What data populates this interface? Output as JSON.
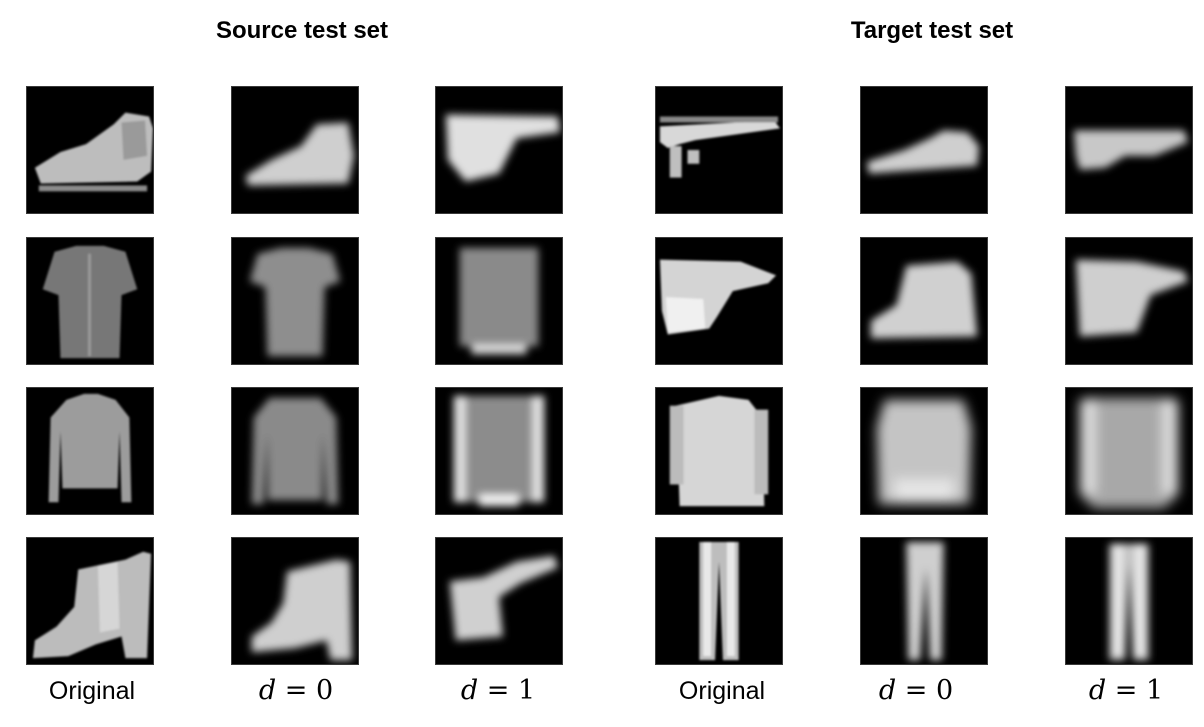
{
  "panels": [
    {
      "title": "Source test set",
      "columns": [
        {
          "label_text": "Original"
        },
        {
          "label_var": "d",
          "label_rest": " = 0"
        },
        {
          "label_var": "d",
          "label_rest": " = 1"
        }
      ]
    },
    {
      "title": "Target test set",
      "columns": [
        {
          "label_text": "Original"
        },
        {
          "label_var": "d",
          "label_rest": " = 0"
        },
        {
          "label_var": "d",
          "label_rest": " = 1"
        }
      ]
    }
  ]
}
